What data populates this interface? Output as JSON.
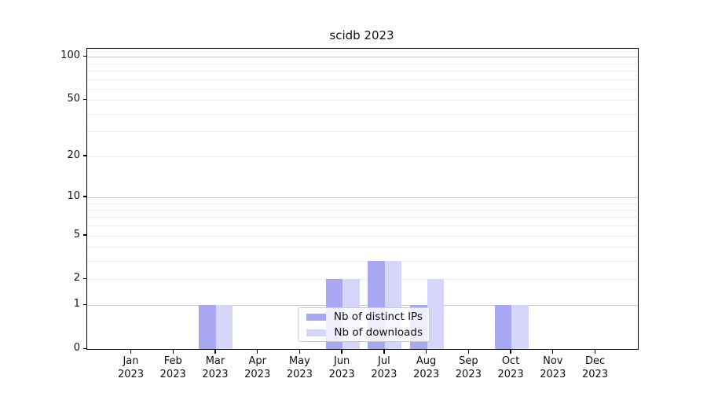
{
  "title": "scidb 2023",
  "chart_data": {
    "type": "bar",
    "title": "scidb 2023",
    "categories": [
      "Jan 2023",
      "Feb 2023",
      "Mar 2023",
      "Apr 2023",
      "May 2023",
      "Jun 2023",
      "Jul 2023",
      "Aug 2023",
      "Sep 2023",
      "Oct 2023",
      "Nov 2023",
      "Dec 2023"
    ],
    "series": [
      {
        "name": "Nb of distinct IPs",
        "color": "#a8a8f2",
        "values": [
          0,
          0,
          1,
          0,
          0,
          2,
          3,
          1,
          0,
          1,
          0,
          0
        ]
      },
      {
        "name": "Nb of downloads",
        "color": "#d6d6fa",
        "values": [
          0,
          0,
          1,
          0,
          0,
          2,
          3,
          2,
          0,
          1,
          0,
          0
        ]
      }
    ],
    "xlabel": "",
    "ylabel": "",
    "y_scale": "log10(1+y)",
    "ylim": [
      0,
      114
    ],
    "y_ticks": [
      0,
      1,
      2,
      5,
      10,
      20,
      50,
      100
    ],
    "grid": {
      "on": true,
      "major_ticks": [
        1,
        10,
        100
      ],
      "minor_ticks": [
        2,
        3,
        4,
        5,
        6,
        7,
        8,
        9,
        20,
        30,
        40,
        50,
        60,
        70,
        80,
        90,
        110
      ],
      "major_color": "#c6c6c6",
      "minor_color": "#ededed"
    },
    "legend_position": "inside-bottom-center"
  },
  "colors": {
    "spine": "#000000",
    "background": "#ffffff",
    "text": "#111111"
  }
}
